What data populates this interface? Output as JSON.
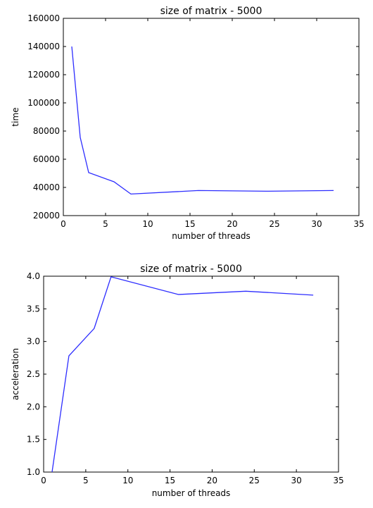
{
  "colors": {
    "line": "#2d2dff",
    "frame": "#000000"
  },
  "chart_data": [
    {
      "type": "line",
      "title": "size of matrix - 5000",
      "xlabel": "number of threads",
      "ylabel": "time",
      "xlim": [
        0,
        35
      ],
      "ylim": [
        20000,
        160000
      ],
      "xticks": [
        0,
        5,
        10,
        15,
        20,
        25,
        30,
        35
      ],
      "yticks": [
        20000,
        40000,
        60000,
        80000,
        100000,
        120000,
        140000,
        160000
      ],
      "grid": false,
      "series": [
        {
          "x": [
            1,
            2,
            3,
            6,
            8,
            16,
            24,
            32
          ],
          "values": [
            140000,
            75500,
            50500,
            44000,
            35300,
            37800,
            37300,
            37800
          ]
        }
      ]
    },
    {
      "type": "line",
      "title": "size of matrix - 5000",
      "xlabel": "number of threads",
      "ylabel": "acceleration",
      "xlim": [
        0,
        35
      ],
      "ylim": [
        1.0,
        4.0
      ],
      "xticks": [
        0,
        5,
        10,
        15,
        20,
        25,
        30,
        35
      ],
      "yticks": [
        1.0,
        1.5,
        2.0,
        2.5,
        3.0,
        3.5,
        4.0
      ],
      "grid": false,
      "series": [
        {
          "x": [
            1,
            3,
            6,
            8,
            16,
            24,
            32
          ],
          "values": [
            1.0,
            2.78,
            3.2,
            3.99,
            3.72,
            3.77,
            3.71
          ]
        }
      ]
    }
  ]
}
